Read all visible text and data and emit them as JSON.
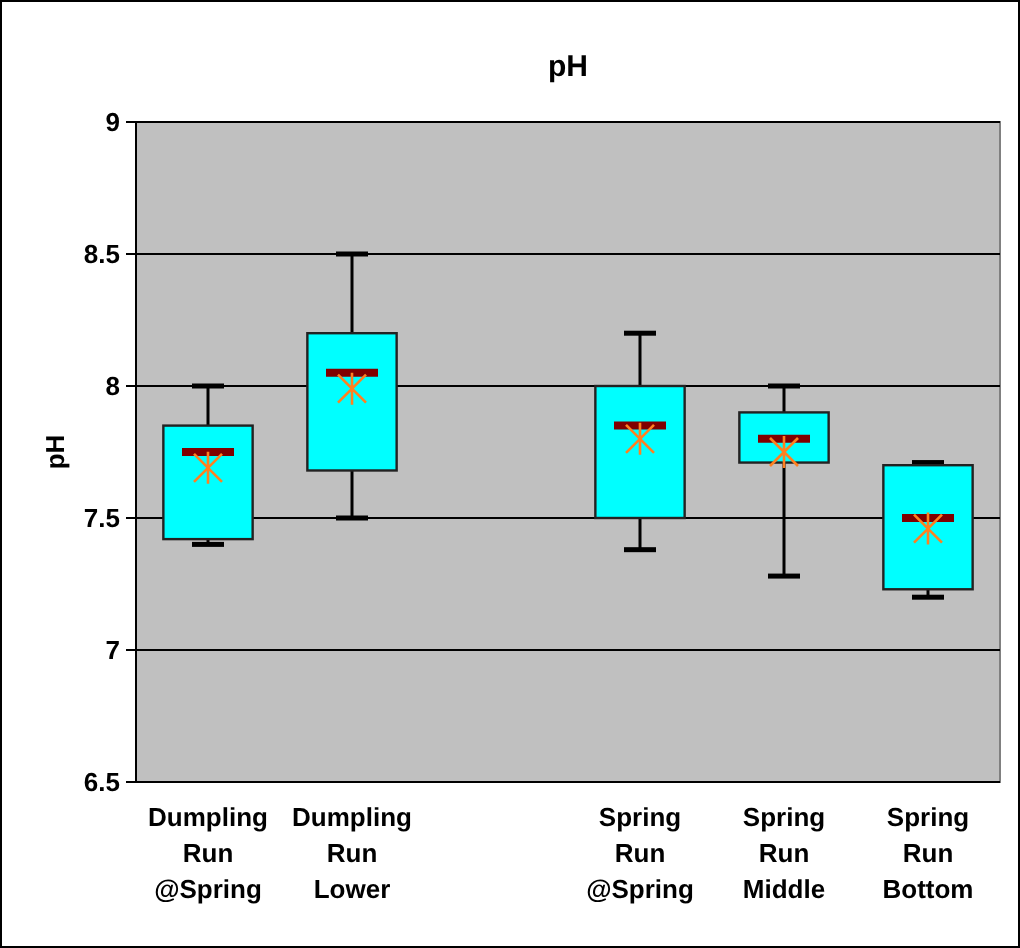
{
  "chart_data": {
    "type": "box",
    "title": "pH",
    "ylabel": "pH",
    "categories": [
      "Dumpling Run @Spring",
      "Dumpling Run Lower",
      null,
      "Spring Run @Spring",
      "Spring Run Middle",
      "Spring Run Bottom"
    ],
    "boxes": [
      {
        "low": 7.4,
        "q1": 7.42,
        "median": 7.75,
        "q3": 7.85,
        "high": 8.0,
        "mean": 7.69
      },
      {
        "low": 7.5,
        "q1": 7.68,
        "median": 8.05,
        "q3": 8.2,
        "high": 8.5,
        "mean": 7.99
      },
      null,
      {
        "low": 7.38,
        "q1": 7.5,
        "median": 7.85,
        "q3": 8.0,
        "high": 8.2,
        "mean": 7.8
      },
      {
        "low": 7.28,
        "q1": 7.71,
        "median": 7.8,
        "q3": 7.9,
        "high": 8.0,
        "mean": 7.75
      },
      {
        "low": 7.2,
        "q1": 7.23,
        "median": 7.5,
        "q3": 7.7,
        "high": 7.71,
        "mean": 7.46
      }
    ],
    "color": "#00ffff",
    "ylim": [
      6.5,
      9
    ],
    "yticks": [
      {
        "value": 6.5,
        "label": "6.5"
      },
      {
        "value": 7,
        "label": "7"
      },
      {
        "value": 7.5,
        "label": "7.5"
      },
      {
        "value": 8,
        "label": "8"
      },
      {
        "value": 8.5,
        "label": "8.5"
      },
      {
        "value": 9,
        "label": "9"
      }
    ],
    "grid": "y"
  }
}
